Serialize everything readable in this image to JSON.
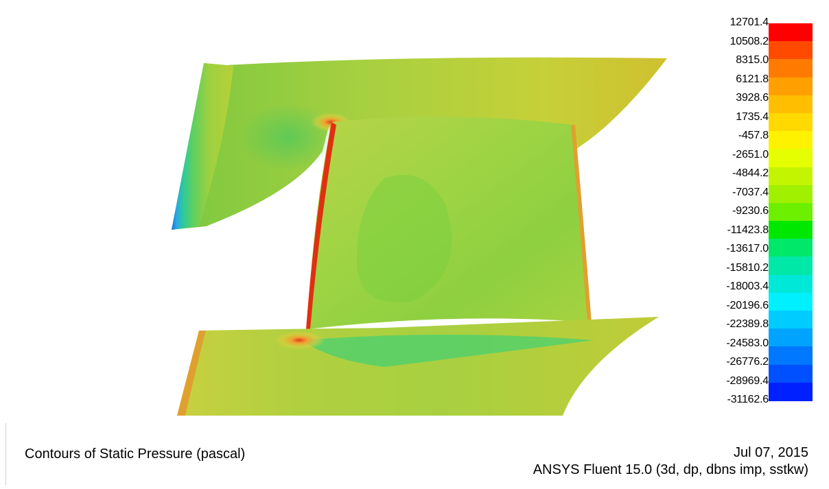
{
  "plot": {
    "title": "Contours of Static Pressure (pascal)",
    "date": "Jul 07, 2015",
    "solver": "ANSYS Fluent 15.0 (3d, dp, dbns imp, sstkw)"
  },
  "legend": {
    "labels": [
      "12701.4",
      "10508.2",
      "8315.0",
      "6121.8",
      "3928.6",
      "1735.4",
      "-457.8",
      "-2651.0",
      "-4844.2",
      "-7037.4",
      "-9230.6",
      "-11423.8",
      "-13617.0",
      "-15810.2",
      "-18003.4",
      "-20196.6",
      "-22389.8",
      "-24583.0",
      "-26776.2",
      "-28969.4",
      "-31162.6"
    ],
    "colors": [
      "#ff0000",
      "#ff4a00",
      "#ff7a00",
      "#ffa000",
      "#ffbf00",
      "#ffd900",
      "#fff200",
      "#e5ff00",
      "#c4f500",
      "#a0f000",
      "#6cf000",
      "#00e800",
      "#00e86a",
      "#00e8a8",
      "#00e8d8",
      "#00f0ff",
      "#00ccff",
      "#00a4ff",
      "#0078ff",
      "#0050ff",
      "#0020ff"
    ]
  }
}
